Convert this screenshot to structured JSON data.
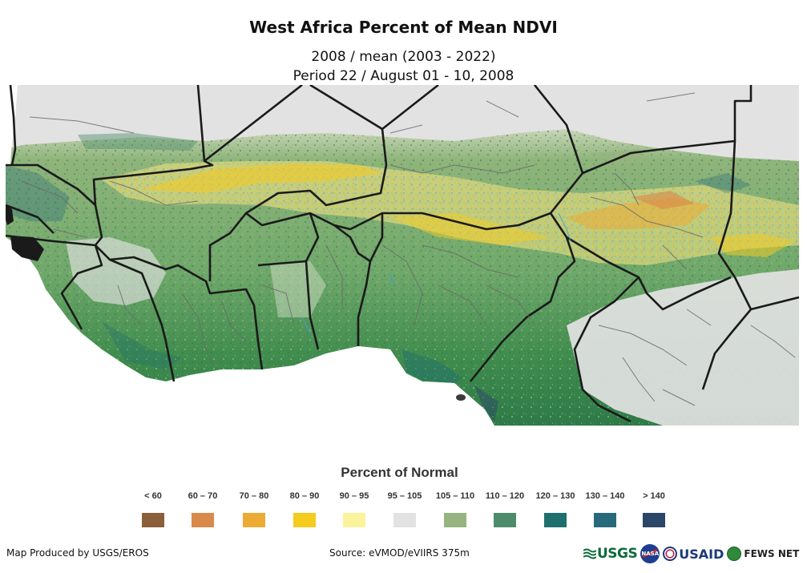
{
  "header": {
    "title": "West Africa Percent of Mean NDVI",
    "subtitle_line1": "2008 / mean (2003 - 2022)",
    "subtitle_line2": "Period 22 / August 01 - 10, 2008"
  },
  "legend": {
    "title": "Percent of Normal",
    "items": [
      {
        "label": "< 60",
        "color": "#8a5f3a"
      },
      {
        "label": "60 – 70",
        "color": "#d9894a"
      },
      {
        "label": "70 – 80",
        "color": "#ecab35"
      },
      {
        "label": "80 – 90",
        "color": "#f5cb1e"
      },
      {
        "label": "90 – 95",
        "color": "#fbf39b"
      },
      {
        "label": "95 – 105",
        "color": "#e2e2e2"
      },
      {
        "label": "105 – 110",
        "color": "#96b47f"
      },
      {
        "label": "110 – 120",
        "color": "#4d8c6b"
      },
      {
        "label": "120 – 130",
        "color": "#1f6f6e"
      },
      {
        "label": "130 – 140",
        "color": "#276a7c"
      },
      {
        "label": "> 140",
        "color": "#2b4668"
      }
    ]
  },
  "footer": {
    "credit": "Map Produced by USGS/EROS",
    "source": "Source: eVMOD/eVIIRS 375m"
  },
  "logos": {
    "usgs": "USGS",
    "nasa": "NASA",
    "usaid": "USAID",
    "fews": "FEWS NET"
  }
}
